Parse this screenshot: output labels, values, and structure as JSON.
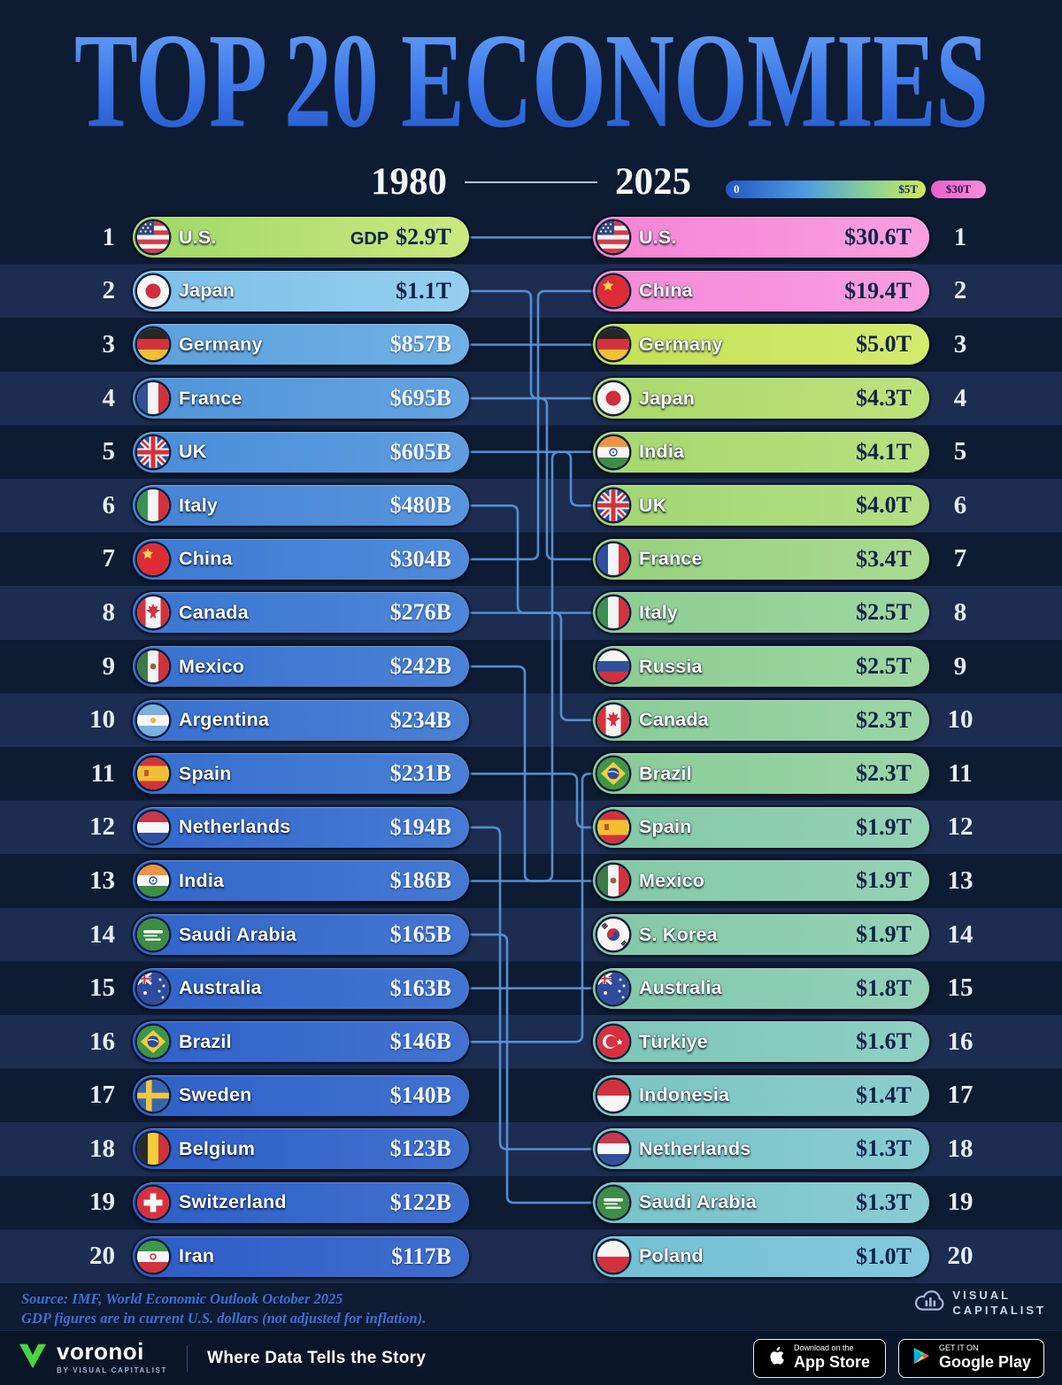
{
  "title": "TOP 20 ECONOMIES",
  "legend": {
    "year_left": "1980",
    "year_right": "2025",
    "scale_min": "0",
    "scale_mid": "$5T",
    "scale_max": "$30T"
  },
  "accent_colors": {
    "connector_line": "#5794d6",
    "title_blue": "#3a76e8",
    "background": "#0d1b33"
  },
  "rows_1980": [
    {
      "rank": "1",
      "country": "U.S.",
      "prefix": "GDP",
      "value": "$2.9T",
      "flag": "us",
      "c1": "#9fd867",
      "c2": "#cbe97f",
      "vc": "#10234a"
    },
    {
      "rank": "2",
      "country": "Japan",
      "value": "$1.1T",
      "flag": "jp",
      "c1": "#7cbfe9",
      "c2": "#94cff0",
      "vc": "#10234a"
    },
    {
      "rank": "3",
      "country": "Germany",
      "value": "$857B",
      "flag": "de",
      "c1": "#5ba0dd",
      "c2": "#6fb1e5",
      "vc": "#f2f6fd"
    },
    {
      "rank": "4",
      "country": "France",
      "value": "$695B",
      "flag": "fr",
      "c1": "#4f93da",
      "c2": "#63a4e2",
      "vc": "#f2f6fd"
    },
    {
      "rank": "5",
      "country": "UK",
      "value": "$605B",
      "flag": "uk",
      "c1": "#4a8dd8",
      "c2": "#5e9ee0",
      "vc": "#f2f6fd"
    },
    {
      "rank": "6",
      "country": "Italy",
      "value": "$480B",
      "flag": "it",
      "c1": "#4484d5",
      "c2": "#5895dd",
      "vc": "#f2f6fd"
    },
    {
      "rank": "7",
      "country": "China",
      "value": "$304B",
      "flag": "cn",
      "c1": "#3d7ad2",
      "c2": "#508bda",
      "vc": "#f2f6fd"
    },
    {
      "rank": "8",
      "country": "Canada",
      "value": "$276B",
      "flag": "ca",
      "c1": "#3a76d1",
      "c2": "#4d87d8",
      "vc": "#f2f6fd"
    },
    {
      "rank": "9",
      "country": "Mexico",
      "value": "$242B",
      "flag": "mx",
      "c1": "#3871cf",
      "c2": "#4b82d7",
      "vc": "#f2f6fd"
    },
    {
      "rank": "10",
      "country": "Argentina",
      "value": "$234B",
      "flag": "ar",
      "c1": "#3770cf",
      "c2": "#4a81d6",
      "vc": "#f2f6fd"
    },
    {
      "rank": "11",
      "country": "Spain",
      "value": "$231B",
      "flag": "es",
      "c1": "#366fce",
      "c2": "#4980d5",
      "vc": "#f2f6fd"
    },
    {
      "rank": "12",
      "country": "Netherlands",
      "value": "$194B",
      "flag": "nl",
      "c1": "#3369cc",
      "c2": "#467ad4",
      "vc": "#f2f6fd"
    },
    {
      "rank": "13",
      "country": "India",
      "value": "$186B",
      "flag": "in",
      "c1": "#3268cc",
      "c2": "#4579d3",
      "vc": "#f2f6fd"
    },
    {
      "rank": "14",
      "country": "Saudi Arabia",
      "value": "$165B",
      "flag": "sa",
      "c1": "#3165ca",
      "c2": "#4476d2",
      "vc": "#f2f6fd"
    },
    {
      "rank": "15",
      "country": "Australia",
      "value": "$163B",
      "flag": "au",
      "c1": "#3064ca",
      "c2": "#4375d1",
      "vc": "#f2f6fd"
    },
    {
      "rank": "16",
      "country": "Brazil",
      "value": "$146B",
      "flag": "br",
      "c1": "#2f62c9",
      "c2": "#4273d0",
      "vc": "#f2f6fd"
    },
    {
      "rank": "17",
      "country": "Sweden",
      "value": "$140B",
      "flag": "se",
      "c1": "#2e61c9",
      "c2": "#4172d0",
      "vc": "#f2f6fd"
    },
    {
      "rank": "18",
      "country": "Belgium",
      "value": "$123B",
      "flag": "be",
      "c1": "#2d5fc8",
      "c2": "#4070cf",
      "vc": "#f2f6fd"
    },
    {
      "rank": "19",
      "country": "Switzerland",
      "value": "$122B",
      "flag": "ch",
      "c1": "#2d5fc8",
      "c2": "#4070cf",
      "vc": "#f2f6fd"
    },
    {
      "rank": "20",
      "country": "Iran",
      "value": "$117B",
      "flag": "ir",
      "c1": "#2c5dc7",
      "c2": "#3f6ece",
      "vc": "#f2f6fd"
    }
  ],
  "rows_2025": [
    {
      "rank": "1",
      "country": "U.S.",
      "value": "$30.6T",
      "flag": "us",
      "c1": "#f583d3",
      "c2": "#fa9fe0",
      "vc": "#10234a"
    },
    {
      "rank": "2",
      "country": "China",
      "value": "$19.4T",
      "flag": "cn",
      "c1": "#f48bd7",
      "c2": "#f99ce0",
      "vc": "#10234a"
    },
    {
      "rank": "3",
      "country": "Germany",
      "value": "$5.0T",
      "flag": "de",
      "c1": "#c3e156",
      "c2": "#d5ea6e",
      "vc": "#10234a"
    },
    {
      "rank": "4",
      "country": "Japan",
      "value": "$4.3T",
      "flag": "jp",
      "c1": "#abd96a",
      "c2": "#bde27b",
      "vc": "#10234a"
    },
    {
      "rank": "5",
      "country": "India",
      "value": "$4.1T",
      "flag": "in",
      "c1": "#a6d76e",
      "c2": "#b8e07f",
      "vc": "#10234a"
    },
    {
      "rank": "6",
      "country": "UK",
      "value": "$4.0T",
      "flag": "uk",
      "c1": "#a2d672",
      "c2": "#b4df83",
      "vc": "#10234a"
    },
    {
      "rank": "7",
      "country": "France",
      "value": "$3.4T",
      "flag": "fr",
      "c1": "#97d180",
      "c2": "#a9da90",
      "vc": "#10234a"
    },
    {
      "rank": "8",
      "country": "Italy",
      "value": "$2.5T",
      "flag": "it",
      "c1": "#8ccd92",
      "c2": "#9ed6a1",
      "vc": "#10234a"
    },
    {
      "rank": "9",
      "country": "Russia",
      "value": "$2.5T",
      "flag": "ru",
      "c1": "#8ccd92",
      "c2": "#9ed6a1",
      "vc": "#10234a"
    },
    {
      "rank": "10",
      "country": "Canada",
      "value": "$2.3T",
      "flag": "ca",
      "c1": "#89cc97",
      "c2": "#9bd5a6",
      "vc": "#10234a"
    },
    {
      "rank": "11",
      "country": "Brazil",
      "value": "$2.3T",
      "flag": "br",
      "c1": "#89cc97",
      "c2": "#9bd5a6",
      "vc": "#10234a"
    },
    {
      "rank": "12",
      "country": "Spain",
      "value": "$1.9T",
      "flag": "es",
      "c1": "#83c9a6",
      "c2": "#95d2b4",
      "vc": "#10234a"
    },
    {
      "rank": "13",
      "country": "Mexico",
      "value": "$1.9T",
      "flag": "mx",
      "c1": "#83c9a6",
      "c2": "#95d2b4",
      "vc": "#10234a"
    },
    {
      "rank": "14",
      "country": "S. Korea",
      "value": "$1.9T",
      "flag": "kr",
      "c1": "#83c9a6",
      "c2": "#95d2b4",
      "vc": "#10234a"
    },
    {
      "rank": "15",
      "country": "Australia",
      "value": "$1.8T",
      "flag": "au",
      "c1": "#81c8ab",
      "c2": "#93d1b9",
      "vc": "#10234a"
    },
    {
      "rank": "16",
      "country": "Türkiye",
      "value": "$1.6T",
      "flag": "tr",
      "c1": "#7dc6b7",
      "c2": "#8fcfc4",
      "vc": "#10234a"
    },
    {
      "rank": "17",
      "country": "Indonesia",
      "value": "$1.4T",
      "flag": "id",
      "c1": "#79c4c3",
      "c2": "#8bcdce",
      "vc": "#10234a"
    },
    {
      "rank": "18",
      "country": "Netherlands",
      "value": "$1.3T",
      "flag": "nl",
      "c1": "#77c3c8",
      "c2": "#89ccd3",
      "vc": "#10234a"
    },
    {
      "rank": "19",
      "country": "Saudi Arabia",
      "value": "$1.3T",
      "flag": "sa",
      "c1": "#77c3c8",
      "c2": "#89ccd3",
      "vc": "#10234a"
    },
    {
      "rank": "20",
      "country": "Poland",
      "value": "$1.0T",
      "flag": "pl",
      "c1": "#72c0d4",
      "c2": "#84c9dd",
      "vc": "#10234a"
    }
  ],
  "connectors": [
    {
      "f": 1,
      "t": 1
    },
    {
      "f": 2,
      "t": 4
    },
    {
      "f": 3,
      "t": 3
    },
    {
      "f": 4,
      "t": 7
    },
    {
      "f": 5,
      "t": 6
    },
    {
      "f": 6,
      "t": 8
    },
    {
      "f": 7,
      "t": 2
    },
    {
      "f": 8,
      "t": 10
    },
    {
      "f": 9,
      "t": 13
    },
    {
      "f": 11,
      "t": 12
    },
    {
      "f": 12,
      "t": 18
    },
    {
      "f": 13,
      "t": 5
    },
    {
      "f": 14,
      "t": 19
    },
    {
      "f": 15,
      "t": 15
    },
    {
      "f": 16,
      "t": 11
    }
  ],
  "chart_data": {
    "type": "table",
    "title": "TOP 20 ECONOMIES",
    "legend": {
      "scale_labels": [
        "0",
        "$5T",
        "$30T"
      ]
    },
    "series": [
      {
        "name": "1980",
        "categories": [
          "U.S.",
          "Japan",
          "Germany",
          "France",
          "UK",
          "Italy",
          "China",
          "Canada",
          "Mexico",
          "Argentina",
          "Spain",
          "Netherlands",
          "India",
          "Saudi Arabia",
          "Australia",
          "Brazil",
          "Sweden",
          "Belgium",
          "Switzerland",
          "Iran"
        ],
        "values_usd_billions": [
          2900,
          1100,
          857,
          695,
          605,
          480,
          304,
          276,
          242,
          234,
          231,
          194,
          186,
          165,
          163,
          146,
          140,
          123,
          122,
          117
        ]
      },
      {
        "name": "2025",
        "categories": [
          "U.S.",
          "China",
          "Germany",
          "Japan",
          "India",
          "UK",
          "France",
          "Italy",
          "Russia",
          "Canada",
          "Brazil",
          "Spain",
          "Mexico",
          "S. Korea",
          "Australia",
          "Türkiye",
          "Indonesia",
          "Netherlands",
          "Saudi Arabia",
          "Poland"
        ],
        "values_usd_trillions": [
          30.6,
          19.4,
          5.0,
          4.3,
          4.1,
          4.0,
          3.4,
          2.5,
          2.5,
          2.3,
          2.3,
          1.9,
          1.9,
          1.9,
          1.8,
          1.6,
          1.4,
          1.3,
          1.3,
          1.0
        ]
      }
    ]
  },
  "source": {
    "line1": "Source: IMF, World Economic Outlook October 2025",
    "line2": "GDP figures are in current U.S. dollars (not adjusted for inflation)."
  },
  "brand": {
    "vc_line1": "VISUAL",
    "vc_line2": "CAPITALIST",
    "voronoi": "voronoi",
    "voronoi_sub": "BY VISUAL CAPITALIST",
    "tagline": "Where Data Tells the Story",
    "appstore_small": "Download on the",
    "appstore_big": "App Store",
    "gplay_small": "GET IT ON",
    "gplay_big": "Google Play"
  }
}
